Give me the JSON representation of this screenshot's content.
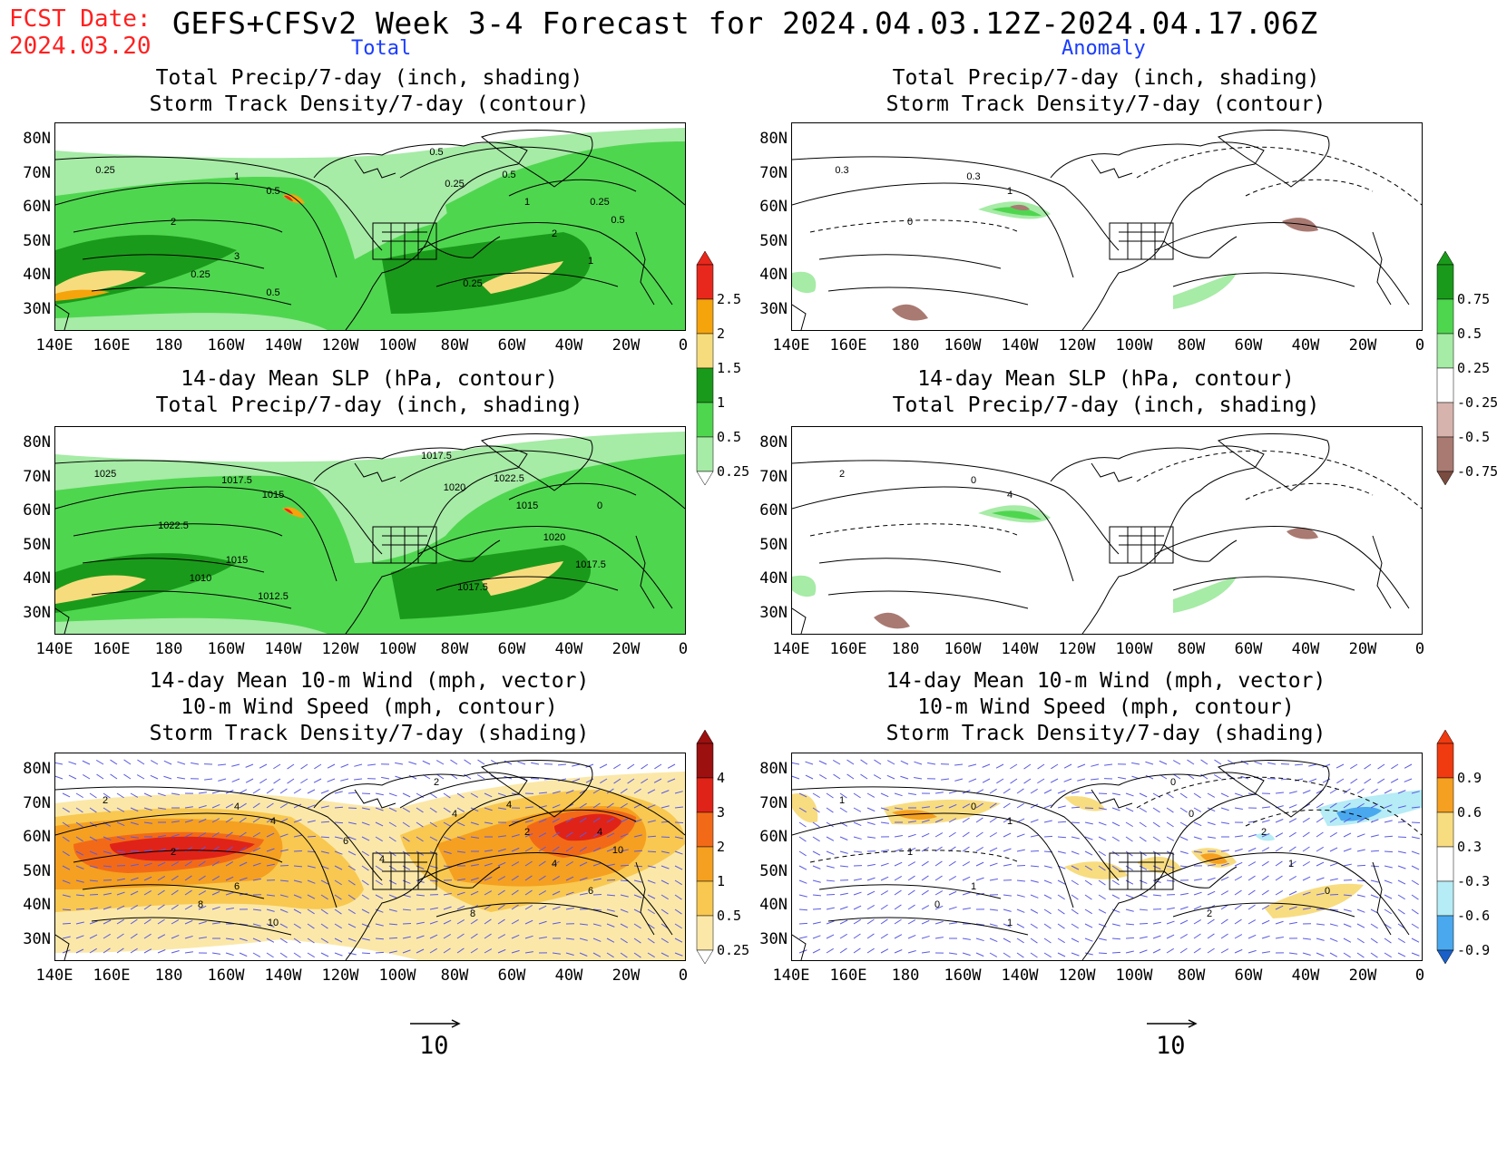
{
  "header": {
    "fcst_label": "FCST Date:",
    "fcst_date": "2024.03.20",
    "title": "GEFS+CFSv2 Week 3-4 Forecast for 2024.04.03.12Z-2024.04.17.06Z",
    "col_total": "Total",
    "col_anomaly": "Anomaly"
  },
  "panels": {
    "p1": {
      "line1": "Total Precip/7-day (inch, shading)",
      "line2": "Storm Track Density/7-day (contour)"
    },
    "p2": {
      "line1": "Total Precip/7-day (inch, shading)",
      "line2": "Storm Track Density/7-day (contour)"
    },
    "p3": {
      "line1": "14-day Mean SLP (hPa, contour)",
      "line2": "Total Precip/7-day (inch, shading)"
    },
    "p4": {
      "line1": "14-day Mean SLP (hPa, contour)",
      "line2": "Total Precip/7-day (inch, shading)"
    },
    "p5": {
      "line1": "14-day Mean 10-m Wind (mph, vector)",
      "line2": "10-m Wind Speed (mph, contour)",
      "line3": "Storm Track Density/7-day (shading)"
    },
    "p6": {
      "line1": "14-day Mean 10-m Wind (mph, vector)",
      "line2": "10-m Wind Speed (mph, contour)",
      "line3": "Storm Track Density/7-day (shading)"
    }
  },
  "axes": {
    "lat_labels": [
      "80N",
      "70N",
      "60N",
      "50N",
      "40N",
      "30N"
    ],
    "lon_labels": [
      "140E",
      "160E",
      "180",
      "160W",
      "140W",
      "120W",
      "100W",
      "80W",
      "60W",
      "40W",
      "20W",
      "0"
    ]
  },
  "contour_labels": {
    "p1": [
      "0.25",
      "1",
      "0.5",
      "2",
      "3",
      "0.25",
      "0.5",
      "0.5",
      "0.25",
      "1",
      "2",
      "1",
      "0.25",
      "0.5",
      "0.25",
      "0.5"
    ],
    "p2": [
      "0.3",
      "0.3",
      "1",
      "0"
    ],
    "p3": [
      "1025",
      "1017.5",
      "1015",
      "1022.5",
      "1015",
      "1010",
      "1012.5",
      "1017.5",
      "1020",
      "1015",
      "1020",
      "1017.5",
      "1017.5",
      "1022.5",
      "0"
    ],
    "p4": [
      "2",
      "0",
      "4"
    ],
    "p5": [
      "2",
      "4",
      "4",
      "2",
      "6",
      "8",
      "10",
      "2",
      "4",
      "2",
      "4",
      "6",
      "8",
      "4",
      "4",
      "10",
      "6",
      "4"
    ],
    "p6": [
      "1",
      "0",
      "1",
      "1",
      "1",
      "0",
      "1",
      "0",
      "0",
      "2",
      "1",
      "0",
      "2"
    ]
  },
  "colorbars": {
    "precip_total": {
      "labels": [
        "2.5",
        "2",
        "1.5",
        "1",
        "0.5",
        "0.25"
      ],
      "colors": [
        "#e8281c",
        "#f5a40c",
        "#f7dc7e",
        "#1a9a1a",
        "#4fd64f",
        "#a6eba6"
      ]
    },
    "precip_anom": {
      "labels": [
        "0.75",
        "0.5",
        "0.25",
        "-0.25",
        "-0.5",
        "-0.75"
      ],
      "colors": [
        "#1a9a1a",
        "#4fd64f",
        "#a6eba6",
        "#ffffff",
        "#d7b3ad",
        "#a97a72",
        "#7a4b3f"
      ]
    },
    "storm_total": {
      "labels": [
        "4",
        "3",
        "2",
        "1",
        "0.5",
        "0.25"
      ],
      "colors": [
        "#9c1010",
        "#e02318",
        "#f26a18",
        "#f5a020",
        "#f8c850",
        "#fbe8a8"
      ]
    },
    "storm_anom": {
      "labels": [
        "0.9",
        "0.6",
        "0.3",
        "-0.3",
        "-0.6",
        "-0.9"
      ],
      "colors": [
        "#f03a10",
        "#f5a020",
        "#f8dc80",
        "#ffffff",
        "#b5ecf5",
        "#4aa8ee",
        "#1a60c8"
      ]
    }
  },
  "vector_ref": {
    "left": "10",
    "right": "10"
  },
  "colors": {
    "fcst": "#ff2020",
    "column_title": "#1a3cff",
    "vector": "#5a5ae6"
  }
}
